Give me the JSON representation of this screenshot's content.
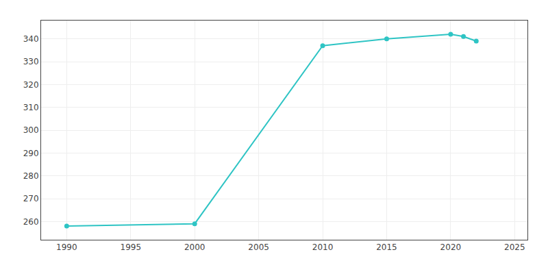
{
  "chart_data": {
    "type": "line",
    "x": [
      1990,
      2000,
      2010,
      2015,
      2020,
      2021,
      2022
    ],
    "values": [
      258,
      259,
      337,
      340,
      342,
      341,
      339
    ],
    "color": "#2EC4C4",
    "marker": "circle",
    "xlim": [
      1988,
      2026
    ],
    "ylim": [
      252,
      348
    ],
    "xticks": [
      1990,
      1995,
      2000,
      2005,
      2010,
      2015,
      2020,
      2025
    ],
    "yticks": [
      260,
      270,
      280,
      290,
      300,
      310,
      320,
      330,
      340
    ],
    "grid": true
  }
}
